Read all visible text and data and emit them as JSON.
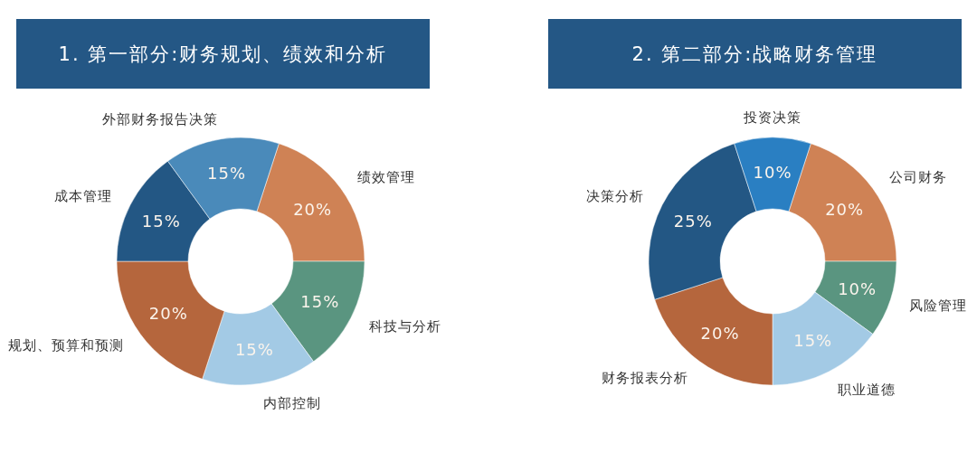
{
  "chart_data": [
    {
      "type": "donut",
      "title": "1. 第一部分:财务规划、绩效和分析",
      "categories": [
        "绩效管理",
        "科技与分析",
        "内部控制",
        "规划、预算和预测",
        "成本管理",
        "外部财务报告决策"
      ],
      "values": [
        20,
        15,
        15,
        20,
        15,
        15
      ],
      "value_labels": [
        "20%",
        "15%",
        "15%",
        "20%",
        "15%",
        "15%"
      ],
      "colors": [
        "#cf8255",
        "#5a9580",
        "#a3cae5",
        "#b5663d",
        "#235784",
        "#4a8aba"
      ]
    },
    {
      "type": "donut",
      "title": "2. 第二部分:战略财务管理",
      "categories": [
        "公司财务",
        "风险管理",
        "职业道德",
        "财务报表分析",
        "决策分析",
        "投资决策"
      ],
      "values": [
        20,
        10,
        15,
        20,
        25,
        10
      ],
      "value_labels": [
        "20%",
        "10%",
        "15%",
        "20%",
        "25%",
        "10%"
      ],
      "colors": [
        "#cf8255",
        "#5a9580",
        "#a3cae5",
        "#b5663d",
        "#235784",
        "#2a7fc2"
      ]
    }
  ]
}
